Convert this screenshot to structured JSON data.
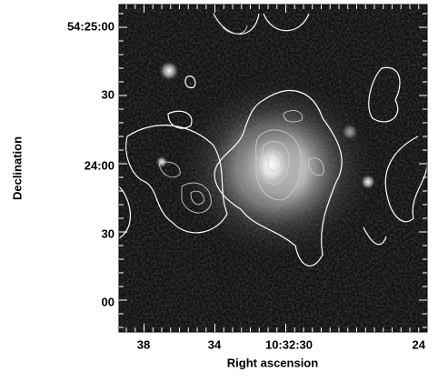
{
  "axes": {
    "x_label": "Right ascension",
    "y_label": "Declination",
    "x_ticks": [
      "38",
      "34",
      "10:32:30",
      "24"
    ],
    "y_ticks": [
      "54:25:00",
      "30",
      "24:00",
      "30",
      "00"
    ]
  }
}
